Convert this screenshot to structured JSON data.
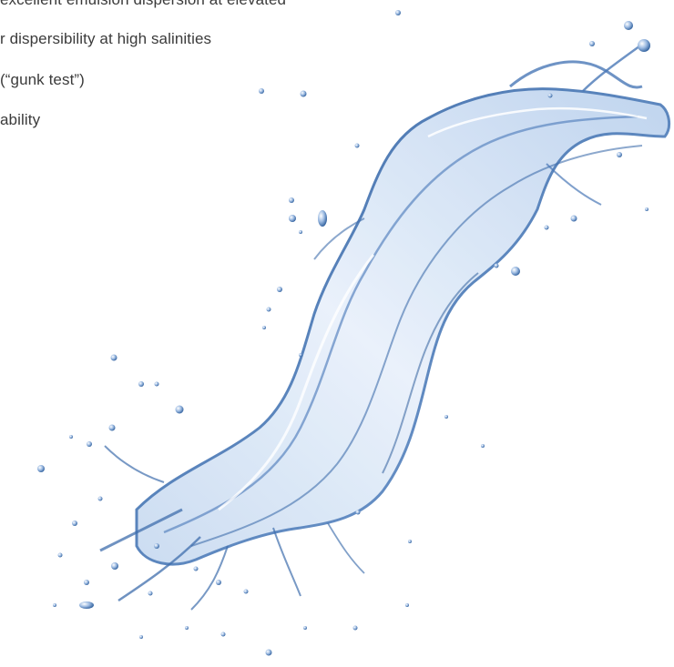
{
  "bullets": [
    "excellent emulsion dispersion at elevated",
    "r dispersibility at high salinities",
    "(“gunk test”)",
    "ability"
  ],
  "colors": {
    "background": "#ffffff",
    "text": "#3b3b3b",
    "water_deep": "#2f5f9c",
    "water_mid": "#7fa6d6",
    "water_light": "#dce8f6"
  },
  "image": {
    "subject": "water-splash-icon"
  }
}
